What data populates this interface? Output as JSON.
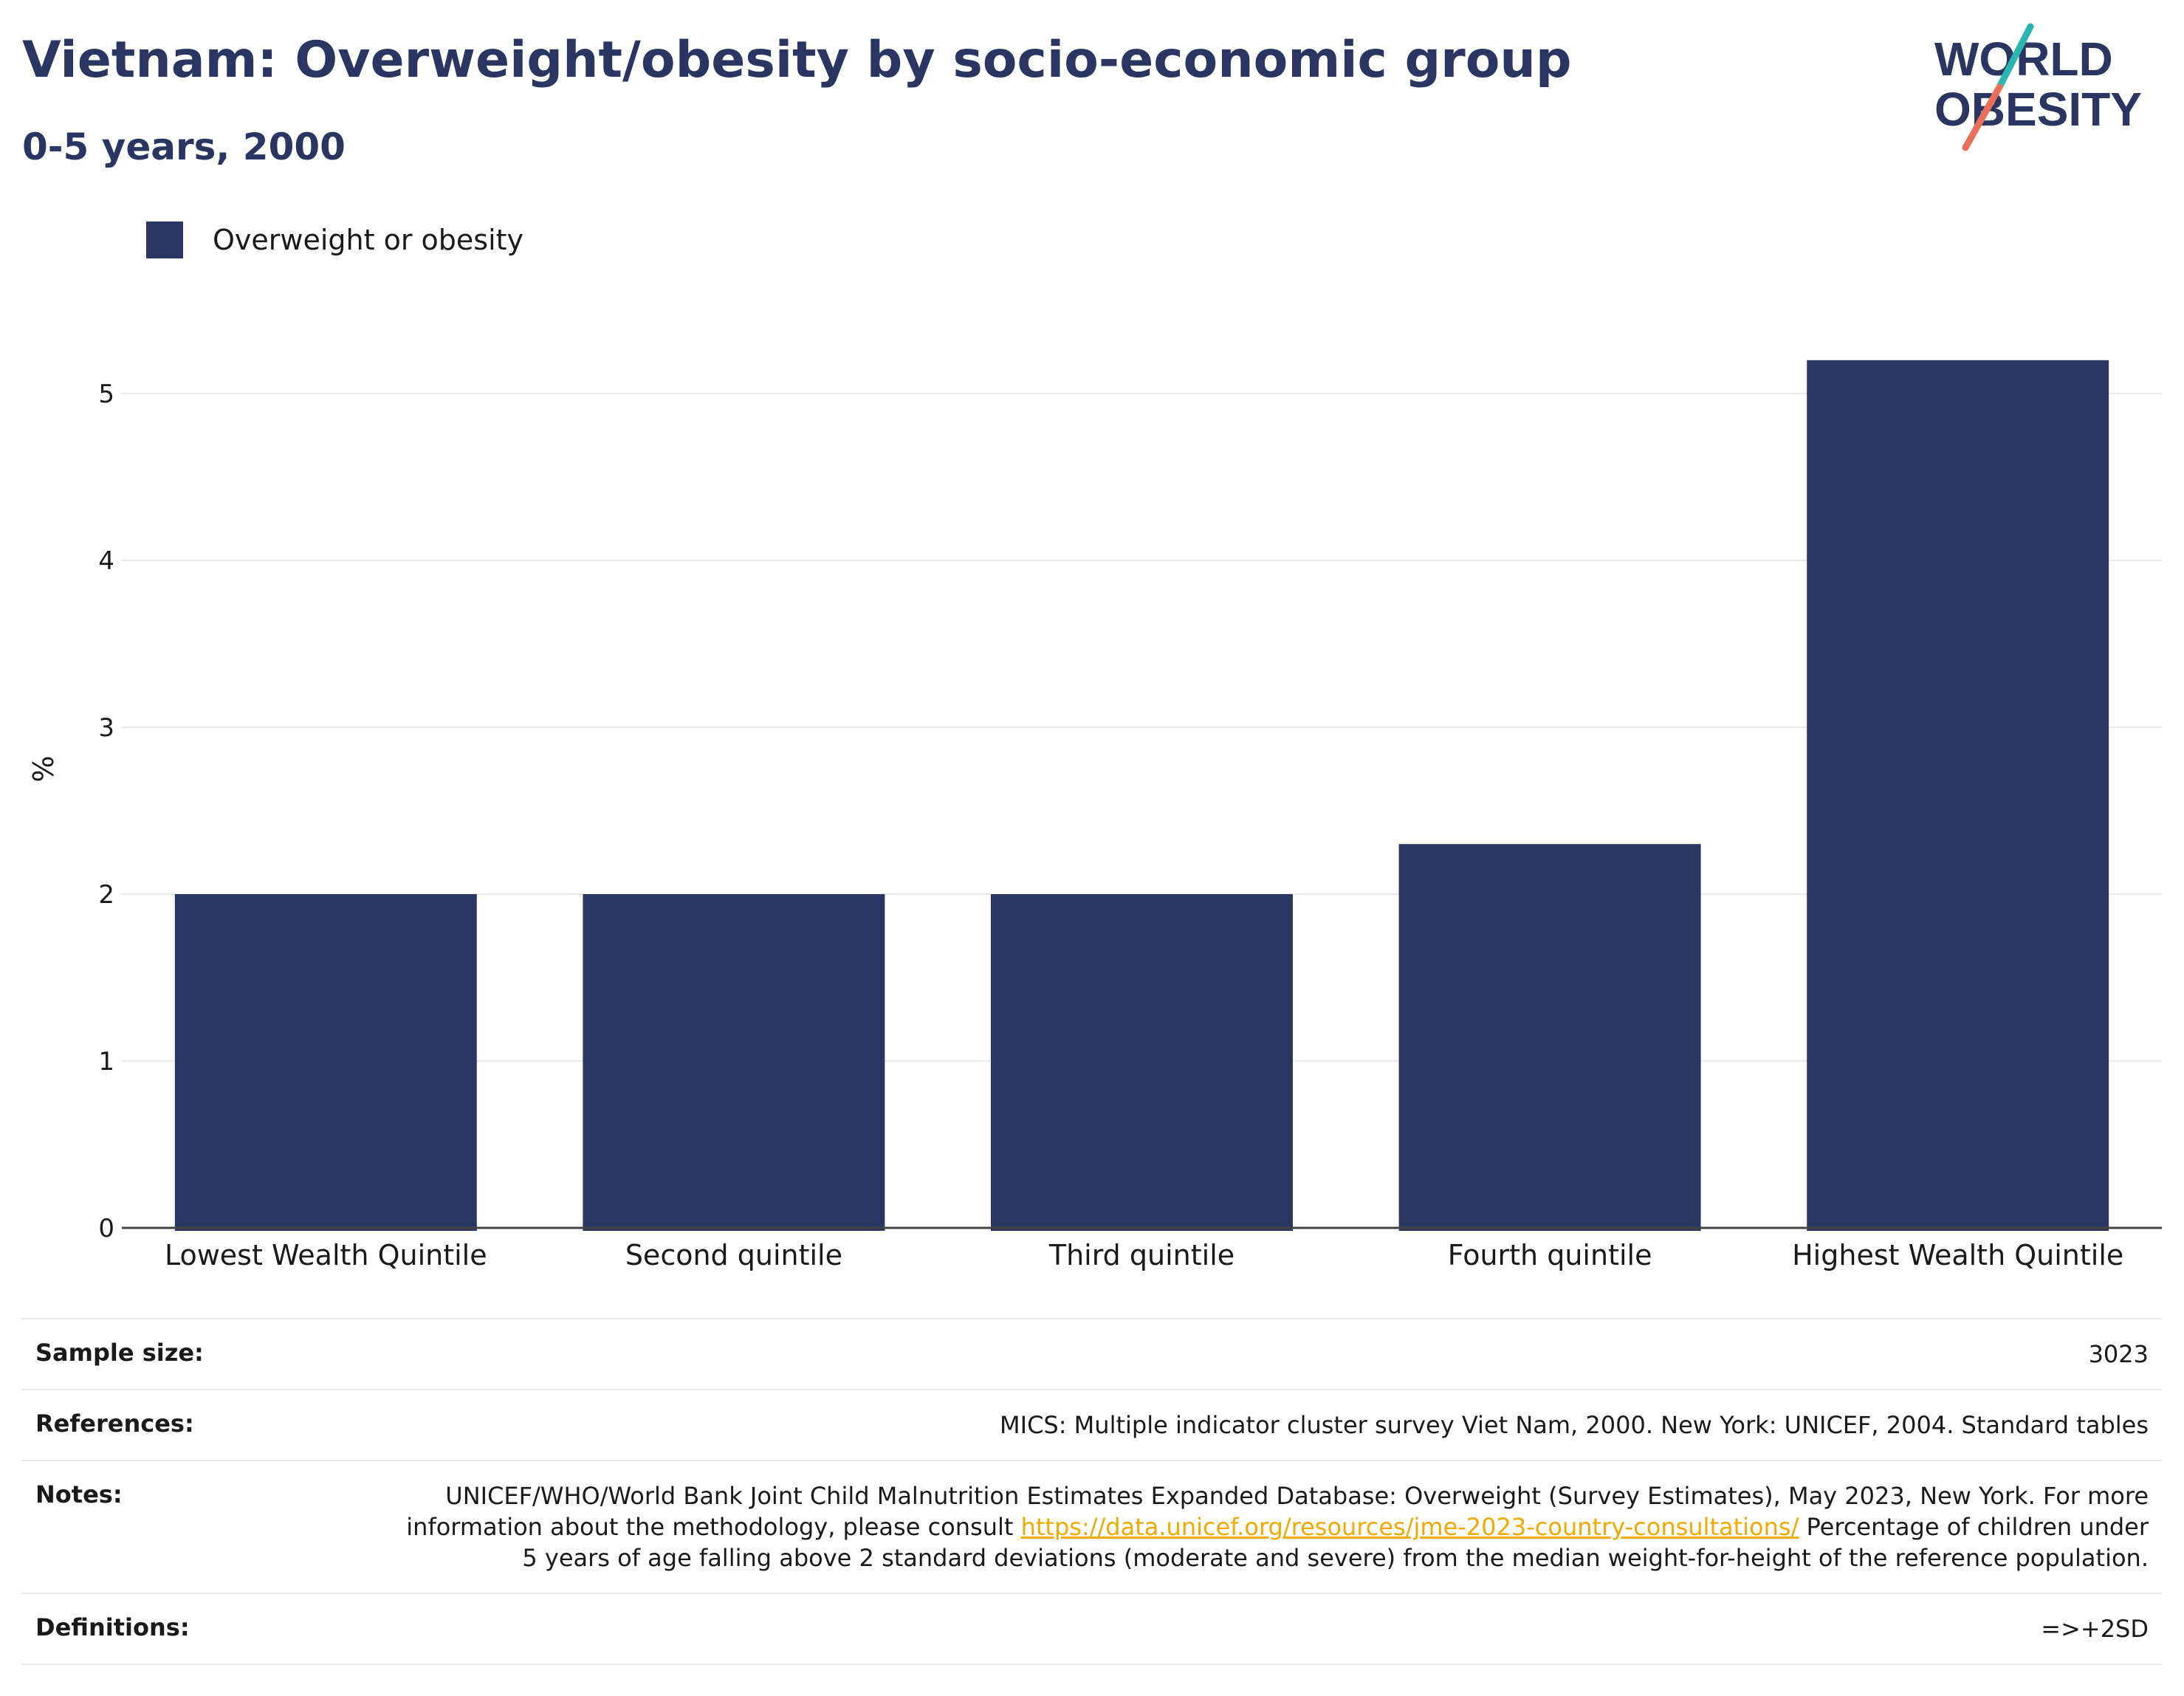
{
  "title": "Vietnam: Overweight/obesity by socio-economic group",
  "subtitle": "0-5 years, 2000",
  "logo": {
    "line1": "WORLD",
    "line2": "OBESITY",
    "accent_teal": "#2ab5b0",
    "accent_coral": "#e8705a"
  },
  "legend": {
    "label": "Overweight or obesity",
    "color": "#2a3562"
  },
  "chart_data": {
    "type": "bar",
    "categories": [
      "Lowest Wealth Quintile",
      "Second quintile",
      "Third quintile",
      "Fourth quintile",
      "Highest Wealth Quintile"
    ],
    "series": [
      {
        "name": "Overweight or obesity",
        "values": [
          2.0,
          2.0,
          2.0,
          2.3,
          5.2
        ]
      }
    ],
    "ylabel": "%",
    "ylim": [
      0,
      5.5
    ],
    "yticks": [
      0,
      1,
      2,
      3,
      4,
      5
    ],
    "grid": true,
    "legend_position": "top-left",
    "bar_color": "#2a3562"
  },
  "info": {
    "sample_size_label": "Sample size:",
    "sample_size_value": "3023",
    "references_label": "References:",
    "references_value": "MICS: Multiple indicator cluster survey Viet Nam, 2000. New York: UNICEF, 2004. Standard tables",
    "notes_label": "Notes:",
    "notes_text_1": "UNICEF/WHO/World Bank Joint Child Malnutrition Estimates Expanded Database: Overweight (Survey Estimates), May 2023, New York. For more information about the methodology, please consult ",
    "notes_link": "https://data.unicef.org/resources/jme-2023-country-consultations/",
    "notes_text_2": " Percentage of children under 5 years of age falling above 2 standard deviations (moderate and severe) from the median weight-for-height of the reference population.",
    "definitions_label": "Definitions:",
    "definitions_value": "=>+2SD"
  }
}
